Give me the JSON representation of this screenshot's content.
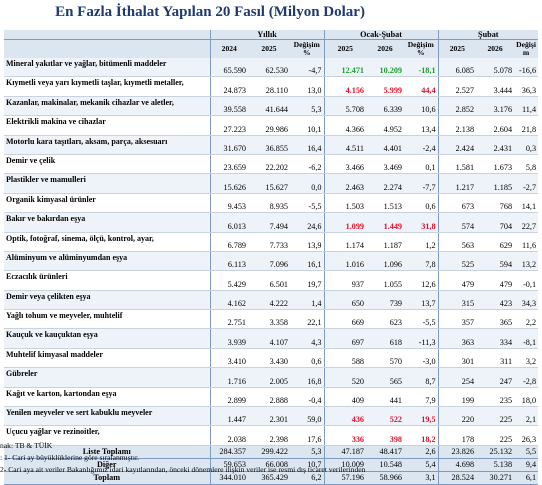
{
  "title": "En Fazla İthalat Yapılan 20 Fasıl (Milyon Dolar)",
  "groups": {
    "yillik": "Yıllık",
    "ocak_subat": "Ocak-Şubat",
    "subat": "Şubat"
  },
  "cols": {
    "y2024": "2024",
    "y2025": "2025",
    "chg_top": "Değişim",
    "chg_bot": "%",
    "o2025": "2025",
    "o2026": "2026",
    "ochg_top": "Değişim",
    "ochg_bot": "%",
    "s2025": "2025",
    "s2026": "2026",
    "schg_top": "Değişi",
    "schg_bot": "m"
  },
  "rows": [
    {
      "name": "Mineral yakıtlar ve yağlar, bitümenli maddeler",
      "v": [
        "65.590",
        "62.530",
        "-4,7",
        "12.471",
        "10.209",
        "-18,1",
        "6.085",
        "5.078",
        "-16,6"
      ],
      "hl": "green"
    },
    {
      "name": "Kıymetli veya yarı kıymetli taşlar, kıymetli metaller,",
      "v": [
        "24.873",
        "28.110",
        "13,0",
        "4.156",
        "5.999",
        "44,4",
        "2.527",
        "3.444",
        "36,3"
      ],
      "hl": "red"
    },
    {
      "name": "Kazanlar, makinalar, mekanik cihazlar ve aletler,",
      "v": [
        "39.558",
        "41.644",
        "5,3",
        "5.708",
        "6.339",
        "10,6",
        "2.852",
        "3.176",
        "11,4"
      ],
      "hl": ""
    },
    {
      "name": "Elektrikli makina ve cihazlar",
      "v": [
        "27.223",
        "29.986",
        "10,1",
        "4.366",
        "4.952",
        "13,4",
        "2.138",
        "2.604",
        "21,8"
      ],
      "hl": ""
    },
    {
      "name": "Motorlu kara taşıtları, aksam, parça, aksesuarı",
      "v": [
        "31.670",
        "36.855",
        "16,4",
        "4.511",
        "4.401",
        "-2,4",
        "2.424",
        "2.431",
        "0,3"
      ],
      "hl": ""
    },
    {
      "name": "Demir ve çelik",
      "v": [
        "23.659",
        "22.202",
        "-6,2",
        "3.466",
        "3.469",
        "0,1",
        "1.581",
        "1.673",
        "5,8"
      ],
      "hl": ""
    },
    {
      "name": "Plastikler ve mamulleri",
      "v": [
        "15.626",
        "15.627",
        "0,0",
        "2.463",
        "2.274",
        "-7,7",
        "1.217",
        "1.185",
        "-2,7"
      ],
      "hl": ""
    },
    {
      "name": "Organik kimyasal ürünler",
      "v": [
        "9.453",
        "8.935",
        "-5,5",
        "1.503",
        "1.513",
        "0,6",
        "673",
        "768",
        "14,1"
      ],
      "hl": ""
    },
    {
      "name": "Bakır ve bakırdan eşya",
      "v": [
        "6.013",
        "7.494",
        "24,6",
        "1.099",
        "1.449",
        "31,8",
        "574",
        "704",
        "22,7"
      ],
      "hl": "red"
    },
    {
      "name": "Optik, fotoğraf, sinema, ölçü, kontrol, ayar,",
      "v": [
        "6.789",
        "7.733",
        "13,9",
        "1.174",
        "1.187",
        "1,2",
        "563",
        "629",
        "11,6"
      ],
      "hl": ""
    },
    {
      "name": "Alüminyum ve alüminyumdan eşya",
      "v": [
        "6.113",
        "7.096",
        "16,1",
        "1.016",
        "1.096",
        "7,8",
        "525",
        "594",
        "13,2"
      ],
      "hl": ""
    },
    {
      "name": "Eczacılık ürünleri",
      "v": [
        "5.429",
        "6.501",
        "19,7",
        "937",
        "1.055",
        "12,6",
        "479",
        "479",
        "-0,1"
      ],
      "hl": ""
    },
    {
      "name": "Demir veya çelikten eşya",
      "v": [
        "4.162",
        "4.222",
        "1,4",
        "650",
        "739",
        "13,7",
        "315",
        "423",
        "34,3"
      ],
      "hl": ""
    },
    {
      "name": "Yağlı tohum ve meyveler, muhtelif",
      "v": [
        "2.751",
        "3.358",
        "22,1",
        "669",
        "623",
        "-5,5",
        "357",
        "365",
        "2,2"
      ],
      "hl": ""
    },
    {
      "name": "Kauçuk ve kauçuktan eşya",
      "v": [
        "3.939",
        "4.107",
        "4,3",
        "697",
        "618",
        "-11,3",
        "363",
        "334",
        "-8,1"
      ],
      "hl": ""
    },
    {
      "name": "Muhtelif kimyasal maddeler",
      "v": [
        "3.410",
        "3.430",
        "0,6",
        "588",
        "570",
        "-3,0",
        "301",
        "311",
        "3,2"
      ],
      "hl": ""
    },
    {
      "name": "Gübreler",
      "v": [
        "1.716",
        "2.005",
        "16,8",
        "520",
        "565",
        "8,7",
        "254",
        "247",
        "-2,8"
      ],
      "hl": ""
    },
    {
      "name": "Kağıt ve karton, kartondan eşya",
      "v": [
        "2.899",
        "2.888",
        "-0,4",
        "409",
        "441",
        "7,9",
        "199",
        "235",
        "18,0"
      ],
      "hl": ""
    },
    {
      "name": "Yenilen meyveler ve sert kabuklu meyveler",
      "v": [
        "1.447",
        "2.301",
        "59,0",
        "436",
        "522",
        "19,5",
        "220",
        "225",
        "2,1"
      ],
      "hl": "red"
    },
    {
      "name": "Uçucu yağlar ve rezinoitler,",
      "v": [
        "2.038",
        "2.398",
        "17,6",
        "336",
        "398",
        "18,2",
        "178",
        "225",
        "26,3"
      ],
      "hl": "red"
    }
  ],
  "totals": [
    {
      "name": "Liste Toplamı",
      "v": [
        "284.357",
        "299.422",
        "5,3",
        "47.187",
        "48.417",
        "2,6",
        "23.826",
        "25.132",
        "5,5"
      ]
    },
    {
      "name": "Diğer",
      "v": [
        "59.653",
        "66.008",
        "10,7",
        "10.009",
        "10.548",
        "5,4",
        "4.698",
        "5.138",
        "9,4"
      ]
    },
    {
      "name": "Toplam",
      "v": [
        "344.010",
        "365.429",
        "6,2",
        "57.196",
        "58.966",
        "3,1",
        "28.524",
        "30.271",
        "6,1"
      ]
    }
  ],
  "notes": {
    "source": "nak: TB & TÜİK",
    "n1": ": 1- Cari ay büyüklüklerine göre sıralanmıştır.",
    "n2": "2- Cari aya ait veriler Bakanlığımız idari kayıtlarından, önceki dönemlere ilişkin veriler ise resmi dış ticaret verilerinden"
  }
}
